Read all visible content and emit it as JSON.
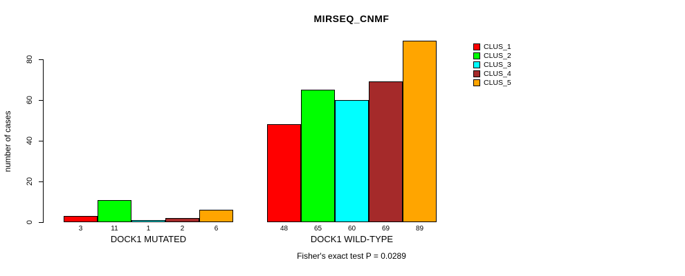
{
  "title": "MIRSEQ_CNMF",
  "footer": "Fisher's exact test P = 0.0289",
  "chart_data": {
    "type": "bar",
    "title": "MIRSEQ_CNMF",
    "xlabel": "",
    "ylabel": "number of cases",
    "ylim": [
      0,
      89
    ],
    "yticks": [
      0,
      20,
      40,
      60,
      80
    ],
    "grid": false,
    "legend_position": "right-outside",
    "annotation": "Fisher's exact test P = 0.0289",
    "series_names": [
      "CLUS_1",
      "CLUS_2",
      "CLUS_3",
      "CLUS_4",
      "CLUS_5"
    ],
    "series_colors": [
      "#FF0000",
      "#00FF00",
      "#00FFFF",
      "#A52A2A",
      "#FFA500"
    ],
    "groups": [
      {
        "label": "DOCK1 MUTATED",
        "values": [
          3,
          11,
          1,
          2,
          6
        ]
      },
      {
        "label": "DOCK1 WILD-TYPE",
        "values": [
          48,
          65,
          60,
          69,
          89
        ]
      }
    ],
    "bar_value_labels": [
      [
        "3",
        "11",
        "1",
        "2",
        "6"
      ],
      [
        "48",
        "65",
        "60",
        "69",
        "89"
      ]
    ]
  },
  "legend": {
    "entries": [
      {
        "label": "CLUS_1",
        "color": "#FF0000"
      },
      {
        "label": "CLUS_2",
        "color": "#00FF00"
      },
      {
        "label": "CLUS_3",
        "color": "#00FFFF"
      },
      {
        "label": "CLUS_4",
        "color": "#A52A2A"
      },
      {
        "label": "CLUS_5",
        "color": "#FFA500"
      }
    ]
  },
  "colors": {
    "background": "#FFFFFF",
    "axis": "#000000",
    "text": "#000000"
  }
}
